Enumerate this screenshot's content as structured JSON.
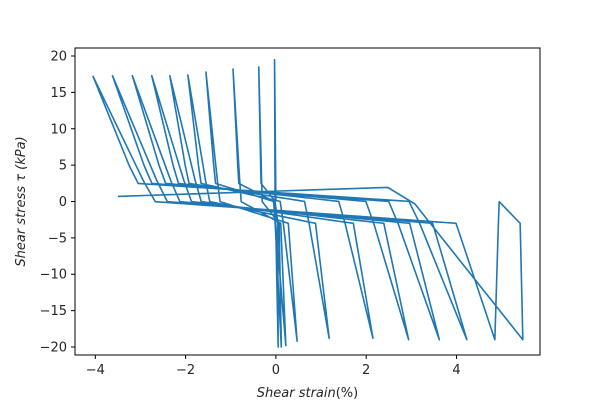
{
  "chart_data": {
    "type": "line",
    "xlabel_italic": "Shear strain",
    "xlabel_unit": "(%)",
    "ylabel_italic": "Shear stress τ (kPa)",
    "xlim": [
      -4.45,
      5.85
    ],
    "ylim": [
      -21.1,
      21.1
    ],
    "xticks": [
      -4,
      -2,
      0,
      2,
      4
    ],
    "yticks": [
      -20,
      -15,
      -10,
      -5,
      0,
      5,
      10,
      15,
      20
    ],
    "grid": false,
    "legend": "none",
    "color": "#1f77b4",
    "neg_peak_strains": [
      0.05,
      0.12,
      0.22,
      0.47,
      1.18,
      2.15,
      2.94,
      3.62,
      4.23,
      4.85,
      5.47
    ],
    "neg_peak_stresses": [
      -20.0,
      -20.0,
      -19.8,
      -19.2,
      -18.8,
      -18.8,
      -19.0,
      -19.0,
      -19.0,
      -19.0,
      -19.0
    ],
    "pos_peak_strains": [
      -0.03,
      -0.38,
      -0.95,
      -1.55,
      -1.95,
      -2.35,
      -2.75,
      -3.18,
      -3.62,
      -4.05
    ],
    "pos_peak_stresses": [
      19.5,
      18.5,
      18.2,
      17.8,
      17.4,
      17.3,
      17.3,
      17.3,
      17.3,
      17.2
    ],
    "end_point": [
      -3.5,
      0.7
    ],
    "series": [
      {
        "values_x": [
          0.0,
          -0.03,
          0.05,
          -0.02,
          0.12,
          -0.06,
          0.22,
          -0.38,
          0.47,
          -0.95,
          1.18,
          -1.55,
          2.15,
          -1.95,
          2.94,
          -2.35,
          3.62,
          -2.75,
          4.23,
          -3.18,
          4.85,
          -3.62,
          5.47,
          -4.05,
          -3.5
        ],
        "values_y": [
          0.0,
          19.5,
          -20.0,
          19.5,
          -20.0,
          19.0,
          -19.8,
          18.5,
          -19.2,
          18.2,
          -18.8,
          17.8,
          -18.8,
          17.4,
          -19.0,
          17.3,
          -19.0,
          17.3,
          -19.0,
          17.3,
          -19.0,
          17.3,
          -19.0,
          17.2,
          0.7
        ]
      }
    ]
  }
}
